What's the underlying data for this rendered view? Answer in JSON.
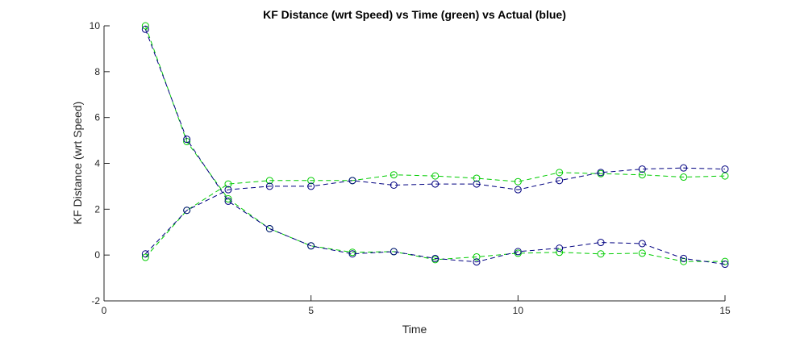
{
  "chart_data": {
    "type": "line",
    "title": "KF Distance (wrt Speed) vs Time (green) vs Actual (blue)",
    "xlabel": "Time",
    "ylabel": "KF Distance (wrt Speed)",
    "xlim": [
      0,
      15
    ],
    "ylim": [
      -2,
      10
    ],
    "xticks": [
      "0",
      "5",
      "10",
      "15"
    ],
    "yticks": [
      "-2",
      "0",
      "2",
      "4",
      "6",
      "8",
      "10"
    ],
    "grid": false,
    "legend": "none",
    "x": [
      1,
      2,
      3,
      4,
      5,
      6,
      7,
      8,
      9,
      10,
      11,
      12,
      13,
      14,
      15
    ],
    "series": [
      {
        "color": "#00cc00",
        "marker": "circle",
        "line": "dashed",
        "values": [
          10.0,
          4.95,
          2.45,
          1.15,
          0.4,
          0.12,
          0.15,
          -0.2,
          -0.08,
          0.08,
          0.12,
          0.05,
          0.08,
          -0.28,
          -0.28
        ]
      },
      {
        "color": "#00cc00",
        "marker": "circle",
        "line": "dashed",
        "values": [
          -0.1,
          1.95,
          3.1,
          3.25,
          3.25,
          3.25,
          3.5,
          3.45,
          3.35,
          3.2,
          3.6,
          3.55,
          3.5,
          3.4,
          3.45
        ]
      },
      {
        "color": "#000080",
        "marker": "circle",
        "line": "dashed",
        "values": [
          9.85,
          5.05,
          2.35,
          1.15,
          0.4,
          0.05,
          0.15,
          -0.15,
          -0.3,
          0.15,
          0.3,
          0.55,
          0.5,
          -0.15,
          -0.4
        ]
      },
      {
        "color": "#000080",
        "marker": "circle",
        "line": "dashed",
        "values": [
          0.05,
          1.95,
          2.85,
          3.0,
          3.0,
          3.25,
          3.05,
          3.1,
          3.1,
          2.85,
          3.25,
          3.6,
          3.75,
          3.8,
          3.75
        ]
      }
    ]
  }
}
